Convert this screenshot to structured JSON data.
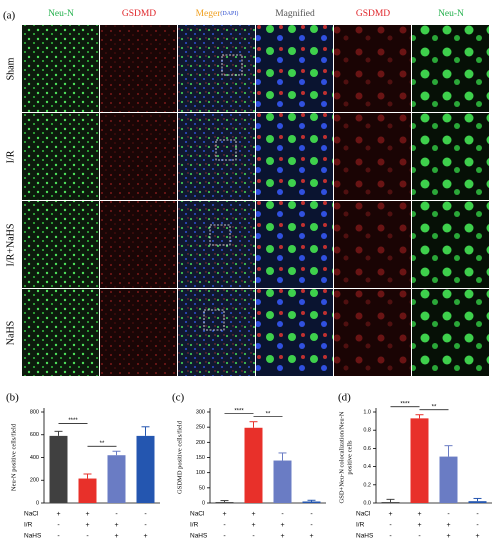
{
  "figure_a": {
    "label": "(a)",
    "columns": [
      {
        "text": "Neu-N",
        "color": "#22b04b"
      },
      {
        "text": "GSDMD",
        "color": "#e0262b"
      },
      {
        "text": "Meger",
        "color": "#f0a020",
        "sub": "(DAPI)",
        "sub_color": "#3050d0"
      },
      {
        "text": "Magnified",
        "color": "#555555"
      },
      {
        "text": "GSDMD",
        "color": "#e0262b"
      },
      {
        "text": "Neu-N",
        "color": "#22b04b"
      }
    ],
    "rows": [
      "Sham",
      "I/R",
      "I/R+NaHS",
      "NaHS"
    ]
  },
  "chart_data": [
    {
      "type": "bar",
      "label": "(b)",
      "ylabel": [
        "Neu-N positive cells/field"
      ],
      "values": [
        590,
        215,
        420,
        590
      ],
      "errors": [
        40,
        40,
        35,
        80
      ],
      "colors": [
        "#404040",
        "#e8302a",
        "#6a7cc4",
        "#2456b0"
      ],
      "ylim": [
        0,
        800
      ],
      "yticks": [
        0,
        200,
        400,
        600,
        800
      ],
      "significance": [
        "****",
        "**",
        null
      ],
      "conditions": [
        {
          "name": "NaCl",
          "signs": [
            "+",
            "+",
            "-",
            "-"
          ]
        },
        {
          "name": "I/R",
          "signs": [
            "-",
            "+",
            "+",
            "-"
          ]
        },
        {
          "name": "NaHS",
          "signs": [
            "-",
            "-",
            "+",
            "+"
          ]
        }
      ]
    },
    {
      "type": "bar",
      "label": "(c)",
      "ylabel": [
        "GSDMD positive cells/field"
      ],
      "values": [
        3,
        248,
        140,
        5
      ],
      "errors": [
        5,
        20,
        25,
        4
      ],
      "colors": [
        "#404040",
        "#e8302a",
        "#6a7cc4",
        "#2456b0"
      ],
      "ylim": [
        0,
        300
      ],
      "yticks": [
        0,
        50,
        100,
        150,
        200,
        250,
        300
      ],
      "significance": [
        "****",
        "**",
        null
      ],
      "conditions": [
        {
          "name": "NaCl",
          "signs": [
            "+",
            "+",
            "-",
            "-"
          ]
        },
        {
          "name": "I/R",
          "signs": [
            "-",
            "+",
            "+",
            "-"
          ]
        },
        {
          "name": "NaHS",
          "signs": [
            "-",
            "-",
            "+",
            "+"
          ]
        }
      ]
    },
    {
      "type": "bar",
      "label": "(d)",
      "ylabel": [
        "GSD+Neu-N colocalization/Neu-N",
        "positive cells"
      ],
      "values": [
        0.01,
        0.93,
        0.51,
        0.02
      ],
      "errors": [
        0.03,
        0.04,
        0.12,
        0.03
      ],
      "colors": [
        "#404040",
        "#e8302a",
        "#6a7cc4",
        "#2456b0"
      ],
      "ylim": [
        0,
        1
      ],
      "yticks": [
        {
          "value": 0,
          "label": "0.0"
        },
        0.2,
        0.4,
        0.6,
        0.8,
        {
          "value": 1,
          "label": "1.0"
        }
      ],
      "significance": [
        "****",
        "**",
        null
      ],
      "conditions": [
        {
          "name": "NaCl",
          "signs": [
            "+",
            "+",
            "-",
            "-"
          ]
        },
        {
          "name": "I/R",
          "signs": [
            "-",
            "+",
            "+",
            "-"
          ]
        },
        {
          "name": "NaHS",
          "signs": [
            "-",
            "-",
            "+",
            "+"
          ]
        }
      ]
    }
  ]
}
